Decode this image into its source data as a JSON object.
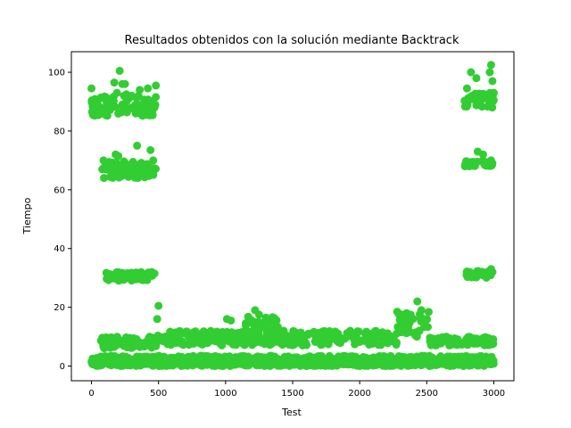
{
  "chart_data": {
    "type": "scatter",
    "title": "Resultados obtenidos con la solución mediante Backtrack",
    "xlabel": "Test",
    "ylabel": "Tiempo",
    "xlim": [
      -150,
      3150
    ],
    "ylim": [
      -5,
      107
    ],
    "xticks": [
      0,
      500,
      1000,
      1500,
      2000,
      2500,
      3000
    ],
    "yticks": [
      0,
      20,
      40,
      60,
      80,
      100
    ],
    "grid": false,
    "marker_color": "#32cd32",
    "clusters": [
      {
        "x_range": [
          0,
          3000
        ],
        "y_range": [
          0,
          1.5
        ]
      },
      {
        "x_range": [
          0,
          3000
        ],
        "y_range": [
          1.5,
          3.5
        ]
      },
      {
        "x_range": [
          0,
          3000
        ],
        "y_range": [
          0.5,
          2.5
        ]
      },
      {
        "x_range": [
          70,
          490
        ],
        "y_range": [
          6,
          10
        ]
      },
      {
        "x_range": [
          490,
          2280
        ],
        "y_range": [
          7,
          12
        ]
      },
      {
        "x_range": [
          2280,
          2520
        ],
        "y_range": [
          10,
          19
        ]
      },
      {
        "x_range": [
          2520,
          3000
        ],
        "y_range": [
          7,
          10
        ]
      },
      {
        "x_range": [
          1150,
          1400
        ],
        "y_range": [
          10,
          17
        ]
      },
      {
        "x_range": [
          0,
          480
        ],
        "y_range": [
          85,
          92
        ]
      },
      {
        "x_range": [
          0,
          60
        ],
        "y_range": [
          85,
          91
        ]
      },
      {
        "x_range": [
          80,
          480
        ],
        "y_range": [
          64,
          70
        ]
      },
      {
        "x_range": [
          100,
          460
        ],
        "y_range": [
          29,
          32
        ]
      },
      {
        "x_range": [
          2780,
          3000
        ],
        "y_range": [
          88,
          93
        ]
      },
      {
        "x_range": [
          2780,
          3000
        ],
        "y_range": [
          68,
          70
        ]
      },
      {
        "x_range": [
          2790,
          2990
        ],
        "y_range": [
          30,
          32.5
        ]
      }
    ],
    "points": [
      [
        0,
        94.5
      ],
      [
        10,
        90
      ],
      [
        20,
        88
      ],
      [
        40,
        89
      ],
      [
        210,
        100.5
      ],
      [
        170,
        96.5
      ],
      [
        230,
        96
      ],
      [
        250,
        96
      ],
      [
        260,
        92.5
      ],
      [
        300,
        92
      ],
      [
        420,
        94.5
      ],
      [
        480,
        95.5
      ],
      [
        360,
        94
      ],
      [
        130,
        91
      ],
      [
        190,
        93
      ],
      [
        230,
        89
      ],
      [
        330,
        86
      ],
      [
        470,
        88
      ],
      [
        90,
        70
      ],
      [
        120,
        67
      ],
      [
        180,
        72
      ],
      [
        200,
        71.5
      ],
      [
        260,
        67.5
      ],
      [
        310,
        69.5
      ],
      [
        340,
        75
      ],
      [
        440,
        73.5
      ],
      [
        460,
        70
      ],
      [
        400,
        65.5
      ],
      [
        350,
        65
      ],
      [
        130,
        30.5
      ],
      [
        280,
        31
      ],
      [
        320,
        29.5
      ],
      [
        370,
        32
      ],
      [
        450,
        32
      ],
      [
        470,
        31.5
      ],
      [
        500,
        20.5
      ],
      [
        490,
        16
      ],
      [
        1010,
        16
      ],
      [
        1040,
        15.5
      ],
      [
        1220,
        19
      ],
      [
        1250,
        17.5
      ],
      [
        2280,
        18.5
      ],
      [
        2380,
        17.5
      ],
      [
        2430,
        22
      ],
      [
        2460,
        19
      ],
      [
        2500,
        16
      ],
      [
        2800,
        94.5
      ],
      [
        2830,
        100
      ],
      [
        2870,
        98
      ],
      [
        2930,
        92
      ],
      [
        2970,
        100
      ],
      [
        2980,
        102.5
      ],
      [
        2990,
        97
      ],
      [
        3000,
        93
      ],
      [
        2800,
        68.5
      ],
      [
        2880,
        73
      ],
      [
        2920,
        72
      ],
      [
        2980,
        70
      ],
      [
        2950,
        69
      ],
      [
        2800,
        31
      ],
      [
        2820,
        32
      ],
      [
        2930,
        31.5
      ],
      [
        2980,
        33
      ],
      [
        2990,
        32
      ]
    ]
  }
}
